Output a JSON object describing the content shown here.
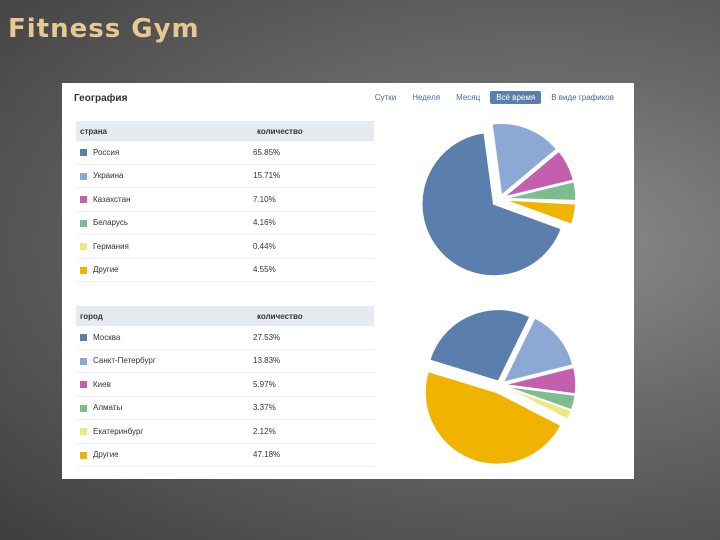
{
  "slide": {
    "title": "Fitness Gym",
    "title_color": "#e8c892"
  },
  "panel": {
    "title": "География",
    "tabs": [
      "Сутки",
      "Неделя",
      "Месяц",
      "Всё время",
      "В виде графиков"
    ],
    "active_tab": "Всё время"
  },
  "countries": {
    "header": [
      "страна",
      "количество"
    ],
    "rows": [
      {
        "name": "Россия",
        "value": "65.85%",
        "color": "#5b7fad"
      },
      {
        "name": "Украина",
        "value": "15.71%",
        "color": "#8ca9d6"
      },
      {
        "name": "Казахстан",
        "value": "7.10%",
        "color": "#c45fae"
      },
      {
        "name": "Беларусь",
        "value": "4.16%",
        "color": "#7bbd8e"
      },
      {
        "name": "Германия",
        "value": "0.44%",
        "color": "#ecea7a"
      },
      {
        "name": "Другие",
        "value": "4.55%",
        "color": "#f0b400"
      }
    ]
  },
  "cities": {
    "header": [
      "город",
      "количество"
    ],
    "rows": [
      {
        "name": "Москва",
        "value": "27.53%",
        "color": "#5b7fad"
      },
      {
        "name": "Санкт-Петербург",
        "value": "13.83%",
        "color": "#8ca9d6"
      },
      {
        "name": "Киев",
        "value": "5.97%",
        "color": "#c45fae"
      },
      {
        "name": "Алматы",
        "value": "3.37%",
        "color": "#7bbd8e"
      },
      {
        "name": "Екатеринбург",
        "value": "2.12%",
        "color": "#ecea7a"
      },
      {
        "name": "Другие",
        "value": "47.18%",
        "color": "#f0b400"
      }
    ]
  },
  "chart_data": [
    {
      "type": "pie",
      "categories": [
        "Россия",
        "Украина",
        "Казахстан",
        "Беларусь",
        "Германия",
        "Другие"
      ],
      "values": [
        65.85,
        15.71,
        7.1,
        4.16,
        0.44,
        4.55
      ],
      "colors": [
        "#5b7fad",
        "#8ca9d6",
        "#c45fae",
        "#7bbd8e",
        "#ecea7a",
        "#f0b400"
      ]
    },
    {
      "type": "pie",
      "categories": [
        "Москва",
        "Санкт-Петербург",
        "Киев",
        "Алматы",
        "Екатеринбург",
        "Другие"
      ],
      "values": [
        27.53,
        13.83,
        5.97,
        3.37,
        2.12,
        47.18
      ],
      "colors": [
        "#5b7fad",
        "#8ca9d6",
        "#c45fae",
        "#7bbd8e",
        "#ecea7a",
        "#f0b400"
      ]
    }
  ]
}
